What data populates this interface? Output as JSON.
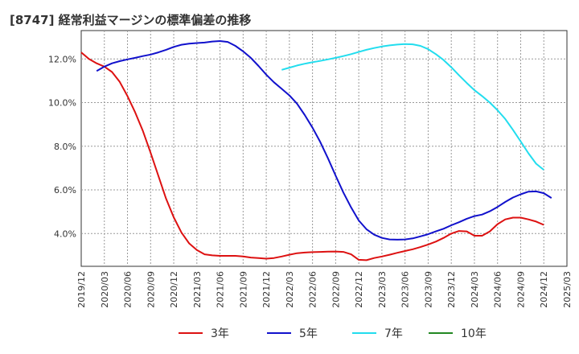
{
  "title": "[8747]  経常利益マージンの標準偏差の推移",
  "chart_data": {
    "type": "line",
    "title": "[8747]  経常利益マージンの標準偏差の推移",
    "xlabel": "",
    "ylabel": "",
    "ylim": [
      2.5,
      13.3
    ],
    "y_ticks": [
      4.0,
      6.0,
      8.0,
      10.0,
      12.0
    ],
    "y_tick_labels": [
      "4.0%",
      "6.0%",
      "8.0%",
      "10.0%",
      "12.0%"
    ],
    "x_tick_labels": [
      "2019/12",
      "2020/03",
      "2020/06",
      "2020/09",
      "2020/12",
      "2021/03",
      "2021/06",
      "2021/09",
      "2021/12",
      "2022/03",
      "2022/06",
      "2022/09",
      "2022/12",
      "2023/03",
      "2023/06",
      "2023/09",
      "2023/12",
      "2024/03",
      "2024/06",
      "2024/09",
      "2024/12",
      "2025/03"
    ],
    "grid": true,
    "legend_position": "bottom",
    "series": [
      {
        "name": "3年",
        "color": "#dd1111",
        "points": [
          [
            "2019/12",
            12.3
          ],
          [
            "2020/01",
            12.0
          ],
          [
            "2020/02",
            11.8
          ],
          [
            "2020/03",
            11.65
          ],
          [
            "2020/04",
            11.4
          ],
          [
            "2020/05",
            10.95
          ],
          [
            "2020/06",
            10.3
          ],
          [
            "2020/07",
            9.55
          ],
          [
            "2020/08",
            8.7
          ],
          [
            "2020/09",
            7.7
          ],
          [
            "2020/10",
            6.65
          ],
          [
            "2020/11",
            5.6
          ],
          [
            "2020/12",
            4.75
          ],
          [
            "2020/13",
            4.05
          ],
          [
            "2021/02",
            3.55
          ],
          [
            "2021/03",
            3.25
          ],
          [
            "2021/04",
            3.05
          ],
          [
            "2021/05",
            3.0
          ],
          [
            "2021/06",
            2.98
          ],
          [
            "2021/07",
            2.98
          ],
          [
            "2021/08",
            2.98
          ],
          [
            "2021/09",
            2.95
          ],
          [
            "2021/10",
            2.9
          ],
          [
            "2021/11",
            2.88
          ],
          [
            "2021/12",
            2.85
          ],
          [
            "2022/01",
            2.88
          ],
          [
            "2022/02",
            2.95
          ],
          [
            "2022/03",
            3.03
          ],
          [
            "2022/04",
            3.1
          ],
          [
            "2022/05",
            3.13
          ],
          [
            "2022/06",
            3.15
          ],
          [
            "2022/07",
            3.16
          ],
          [
            "2022/08",
            3.17
          ],
          [
            "2022/09",
            3.18
          ],
          [
            "2022/10",
            3.16
          ],
          [
            "2022/11",
            3.05
          ],
          [
            "2022/12",
            2.8
          ],
          [
            "2023/01",
            2.78
          ],
          [
            "2023/02",
            2.88
          ],
          [
            "2023/03",
            2.95
          ],
          [
            "2023/04",
            3.03
          ],
          [
            "2023/05",
            3.12
          ],
          [
            "2023/06",
            3.2
          ],
          [
            "2023/07",
            3.28
          ],
          [
            "2023/08",
            3.38
          ],
          [
            "2023/09",
            3.5
          ],
          [
            "2023/10",
            3.63
          ],
          [
            "2023/11",
            3.8
          ],
          [
            "2023/12",
            4.0
          ],
          [
            "2024/01",
            4.12
          ],
          [
            "2024/02",
            4.1
          ],
          [
            "2024/03",
            3.9
          ],
          [
            "2024/04",
            3.9
          ],
          [
            "2024/05",
            4.1
          ],
          [
            "2024/06",
            4.43
          ],
          [
            "2024/07",
            4.65
          ],
          [
            "2024/08",
            4.73
          ],
          [
            "2024/09",
            4.73
          ],
          [
            "2024/10",
            4.65
          ],
          [
            "2024/11",
            4.55
          ],
          [
            "2024/12",
            4.4
          ]
        ]
      },
      {
        "name": "5年",
        "color": "#1111cc",
        "points": [
          [
            "2020/02",
            11.45
          ],
          [
            "2020/03",
            11.65
          ],
          [
            "2020/04",
            11.8
          ],
          [
            "2020/05",
            11.9
          ],
          [
            "2020/06",
            11.98
          ],
          [
            "2020/07",
            12.05
          ],
          [
            "2020/08",
            12.13
          ],
          [
            "2020/09",
            12.2
          ],
          [
            "2020/10",
            12.3
          ],
          [
            "2020/11",
            12.42
          ],
          [
            "2020/12",
            12.55
          ],
          [
            "2020/13",
            12.65
          ],
          [
            "2021/02",
            12.7
          ],
          [
            "2021/03",
            12.73
          ],
          [
            "2021/04",
            12.75
          ],
          [
            "2021/05",
            12.8
          ],
          [
            "2021/06",
            12.82
          ],
          [
            "2021/07",
            12.78
          ],
          [
            "2021/08",
            12.6
          ],
          [
            "2021/09",
            12.35
          ],
          [
            "2021/10",
            12.05
          ],
          [
            "2021/11",
            11.68
          ],
          [
            "2021/12",
            11.28
          ],
          [
            "2022/01",
            10.93
          ],
          [
            "2022/02",
            10.63
          ],
          [
            "2022/03",
            10.33
          ],
          [
            "2022/04",
            9.95
          ],
          [
            "2022/05",
            9.43
          ],
          [
            "2022/06",
            8.85
          ],
          [
            "2022/07",
            8.2
          ],
          [
            "2022/08",
            7.45
          ],
          [
            "2022/09",
            6.65
          ],
          [
            "2022/10",
            5.88
          ],
          [
            "2022/11",
            5.2
          ],
          [
            "2022/12",
            4.6
          ],
          [
            "2023/01",
            4.2
          ],
          [
            "2023/02",
            3.95
          ],
          [
            "2023/03",
            3.8
          ],
          [
            "2023/04",
            3.73
          ],
          [
            "2023/05",
            3.72
          ],
          [
            "2023/06",
            3.73
          ],
          [
            "2023/07",
            3.78
          ],
          [
            "2023/08",
            3.87
          ],
          [
            "2023/09",
            3.97
          ],
          [
            "2023/10",
            4.1
          ],
          [
            "2023/11",
            4.22
          ],
          [
            "2023/12",
            4.38
          ],
          [
            "2024/01",
            4.52
          ],
          [
            "2024/02",
            4.68
          ],
          [
            "2024/03",
            4.8
          ],
          [
            "2024/04",
            4.87
          ],
          [
            "2024/05",
            5.02
          ],
          [
            "2024/06",
            5.22
          ],
          [
            "2024/07",
            5.45
          ],
          [
            "2024/08",
            5.65
          ],
          [
            "2024/09",
            5.8
          ],
          [
            "2024/10",
            5.92
          ],
          [
            "2024/11",
            5.93
          ],
          [
            "2024/12",
            5.85
          ],
          [
            "2025/01",
            5.63
          ]
        ]
      },
      {
        "name": "7年",
        "color": "#22ddee",
        "points": [
          [
            "2022/02",
            11.5
          ],
          [
            "2022/03",
            11.6
          ],
          [
            "2022/04",
            11.7
          ],
          [
            "2022/05",
            11.78
          ],
          [
            "2022/06",
            11.85
          ],
          [
            "2022/07",
            11.91
          ],
          [
            "2022/08",
            11.98
          ],
          [
            "2022/09",
            12.05
          ],
          [
            "2022/10",
            12.13
          ],
          [
            "2022/11",
            12.22
          ],
          [
            "2022/12",
            12.32
          ],
          [
            "2023/01",
            12.42
          ],
          [
            "2023/02",
            12.5
          ],
          [
            "2023/03",
            12.57
          ],
          [
            "2023/04",
            12.62
          ],
          [
            "2023/05",
            12.66
          ],
          [
            "2023/06",
            12.68
          ],
          [
            "2023/07",
            12.67
          ],
          [
            "2023/08",
            12.6
          ],
          [
            "2023/09",
            12.45
          ],
          [
            "2023/10",
            12.22
          ],
          [
            "2023/11",
            11.95
          ],
          [
            "2023/12",
            11.62
          ],
          [
            "2024/01",
            11.25
          ],
          [
            "2024/02",
            10.9
          ],
          [
            "2024/03",
            10.57
          ],
          [
            "2024/04",
            10.3
          ],
          [
            "2024/05",
            10.0
          ],
          [
            "2024/06",
            9.65
          ],
          [
            "2024/07",
            9.25
          ],
          [
            "2024/08",
            8.75
          ],
          [
            "2024/09",
            8.22
          ],
          [
            "2024/10",
            7.68
          ],
          [
            "2024/11",
            7.2
          ],
          [
            "2024/12",
            6.92
          ]
        ]
      },
      {
        "name": "10年",
        "color": "#228822",
        "points": []
      }
    ]
  }
}
